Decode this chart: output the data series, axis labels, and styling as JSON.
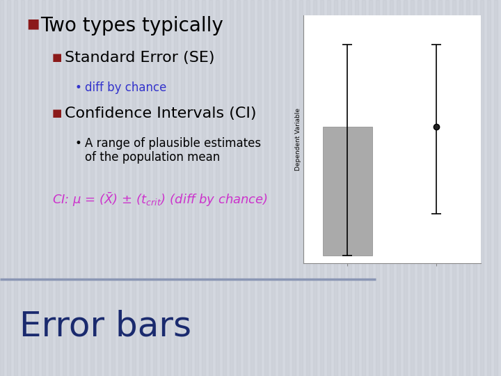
{
  "bg_color": "#d4d8e0",
  "stripe_color_light": "#dcdfe6",
  "stripe_color_dark": "#cacdd6",
  "divider_color": "#8a96b4",
  "title_text": "Two types typically",
  "title_color": "#000000",
  "title_bullet_color": "#8b1a1a",
  "sub1_text": "Standard Error (SE)",
  "sub1_color": "#000000",
  "sub1_bullet_color": "#8b1a1a",
  "bullet1_text": "diff by chance",
  "bullet1_color": "#3333cc",
  "sub2_text": "Confidence Intervals (CI)",
  "sub2_color": "#000000",
  "sub2_bullet_color": "#8b1a1a",
  "bullet2_line1": "A range of plausible estimates",
  "bullet2_line2": "of the population mean",
  "bullet2_color": "#000000",
  "formula_color": "#cc33cc",
  "bottom_title": "Error bars",
  "bottom_title_color": "#1a2a6e",
  "chart_bar_color": "#aaaaaa",
  "chart_bar_edge": "#888888"
}
